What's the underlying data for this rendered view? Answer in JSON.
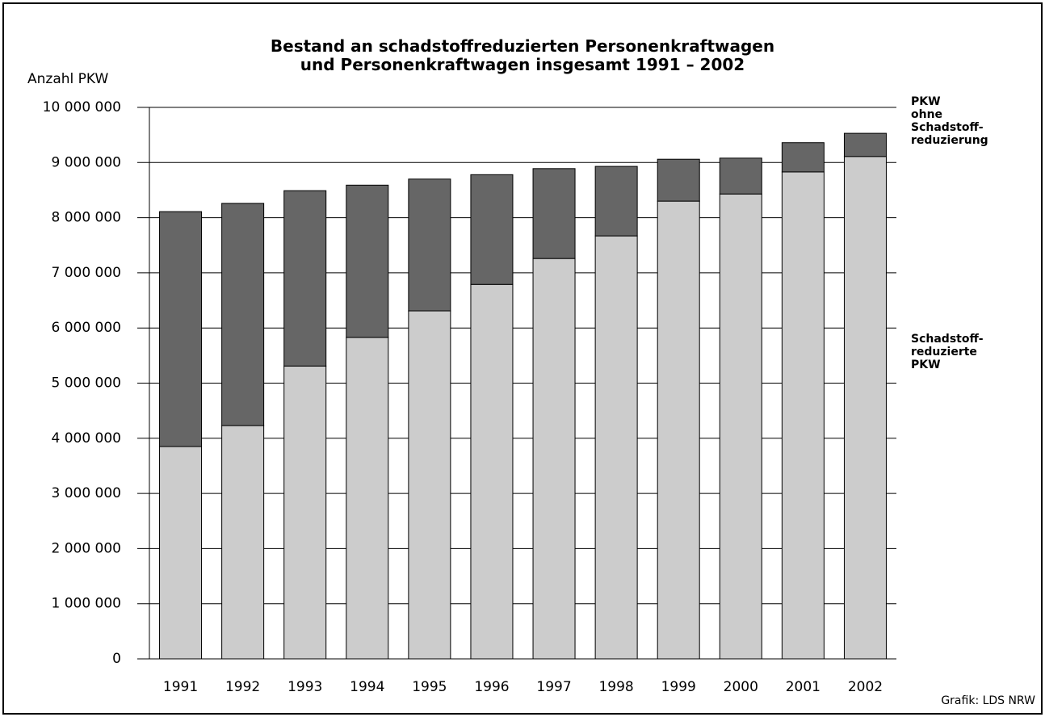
{
  "chart_data": {
    "type": "stacked_bar",
    "title": "Bestand an schadstoffreduzierten Personenkraftwagen\nund Personenkraftwagen insgesamt 1991 – 2002",
    "y_label": "Anzahl PKW",
    "source": "Grafik: LDS NRW",
    "categories": [
      "1991",
      "1992",
      "1993",
      "1994",
      "1995",
      "1996",
      "1997",
      "1998",
      "1999",
      "2000",
      "2001",
      "2002"
    ],
    "series": [
      {
        "name": "Schadstoff-\nreduzierte\nPKW",
        "color": "#cccccc",
        "values": [
          3850000,
          4230000,
          5310000,
          5830000,
          6310000,
          6790000,
          7260000,
          7670000,
          8300000,
          8430000,
          8830000,
          9110000
        ]
      },
      {
        "name": "PKW\nohne\nSchadstoff-\nreduzierung",
        "color": "#666666",
        "values": [
          4260000,
          4030000,
          3180000,
          2760000,
          2390000,
          1990000,
          1630000,
          1260000,
          760000,
          650000,
          530000,
          420000
        ]
      }
    ],
    "ylim": [
      0,
      10000000
    ],
    "yticks": [
      0,
      {
        "value": 1000000,
        "label": "1 000 000"
      },
      {
        "value": 2000000,
        "label": "2 000 000"
      },
      {
        "value": 3000000,
        "label": "3 000 000"
      },
      {
        "value": 4000000,
        "label": "4 000 000"
      },
      {
        "value": 5000000,
        "label": "5 000 000"
      },
      {
        "value": 6000000,
        "label": "6 000 000"
      },
      {
        "value": 7000000,
        "label": "7 000 000"
      },
      {
        "value": 8000000,
        "label": "8 000 000"
      },
      {
        "value": 9000000,
        "label": "9 000 000"
      },
      {
        "value": 10000000,
        "label": "10 000 000"
      }
    ],
    "grid": true,
    "legend": "right"
  }
}
